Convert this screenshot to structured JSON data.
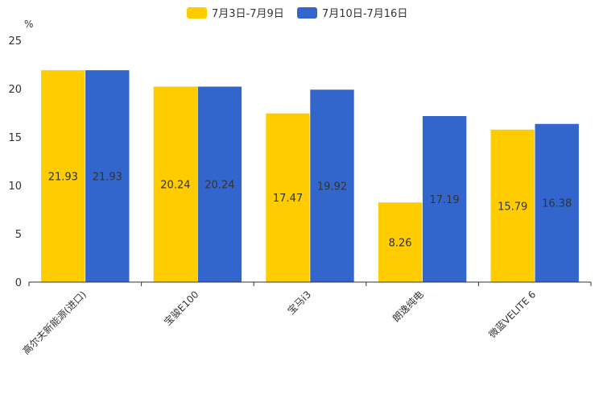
{
  "chart_data": {
    "type": "bar",
    "title": "",
    "xlabel": "",
    "ylabel": "%",
    "ylim": [
      0,
      25
    ],
    "yticks": [
      "0",
      "5",
      "10",
      "15",
      "20",
      "25"
    ],
    "grid": false,
    "legend_position": "top-center",
    "categories": [
      "高尔夫新能源(进口)",
      "宝骏E100",
      "宝马i3",
      "朗逸纯电",
      "微蓝VELITE 6"
    ],
    "series": [
      {
        "name": "7月3日-7月9日",
        "color": "#FFCC00",
        "values": [
          21.93,
          20.24,
          17.47,
          8.26,
          15.79
        ],
        "labels": [
          "21.93",
          "20.24",
          "17.47",
          "8.26",
          "15.79"
        ]
      },
      {
        "name": "7月10日-7月16日",
        "color": "#3366CC",
        "values": [
          21.93,
          20.24,
          19.92,
          17.19,
          16.38
        ],
        "labels": [
          "21.93",
          "20.24",
          "19.92",
          "17.19",
          "16.38"
        ]
      }
    ]
  }
}
